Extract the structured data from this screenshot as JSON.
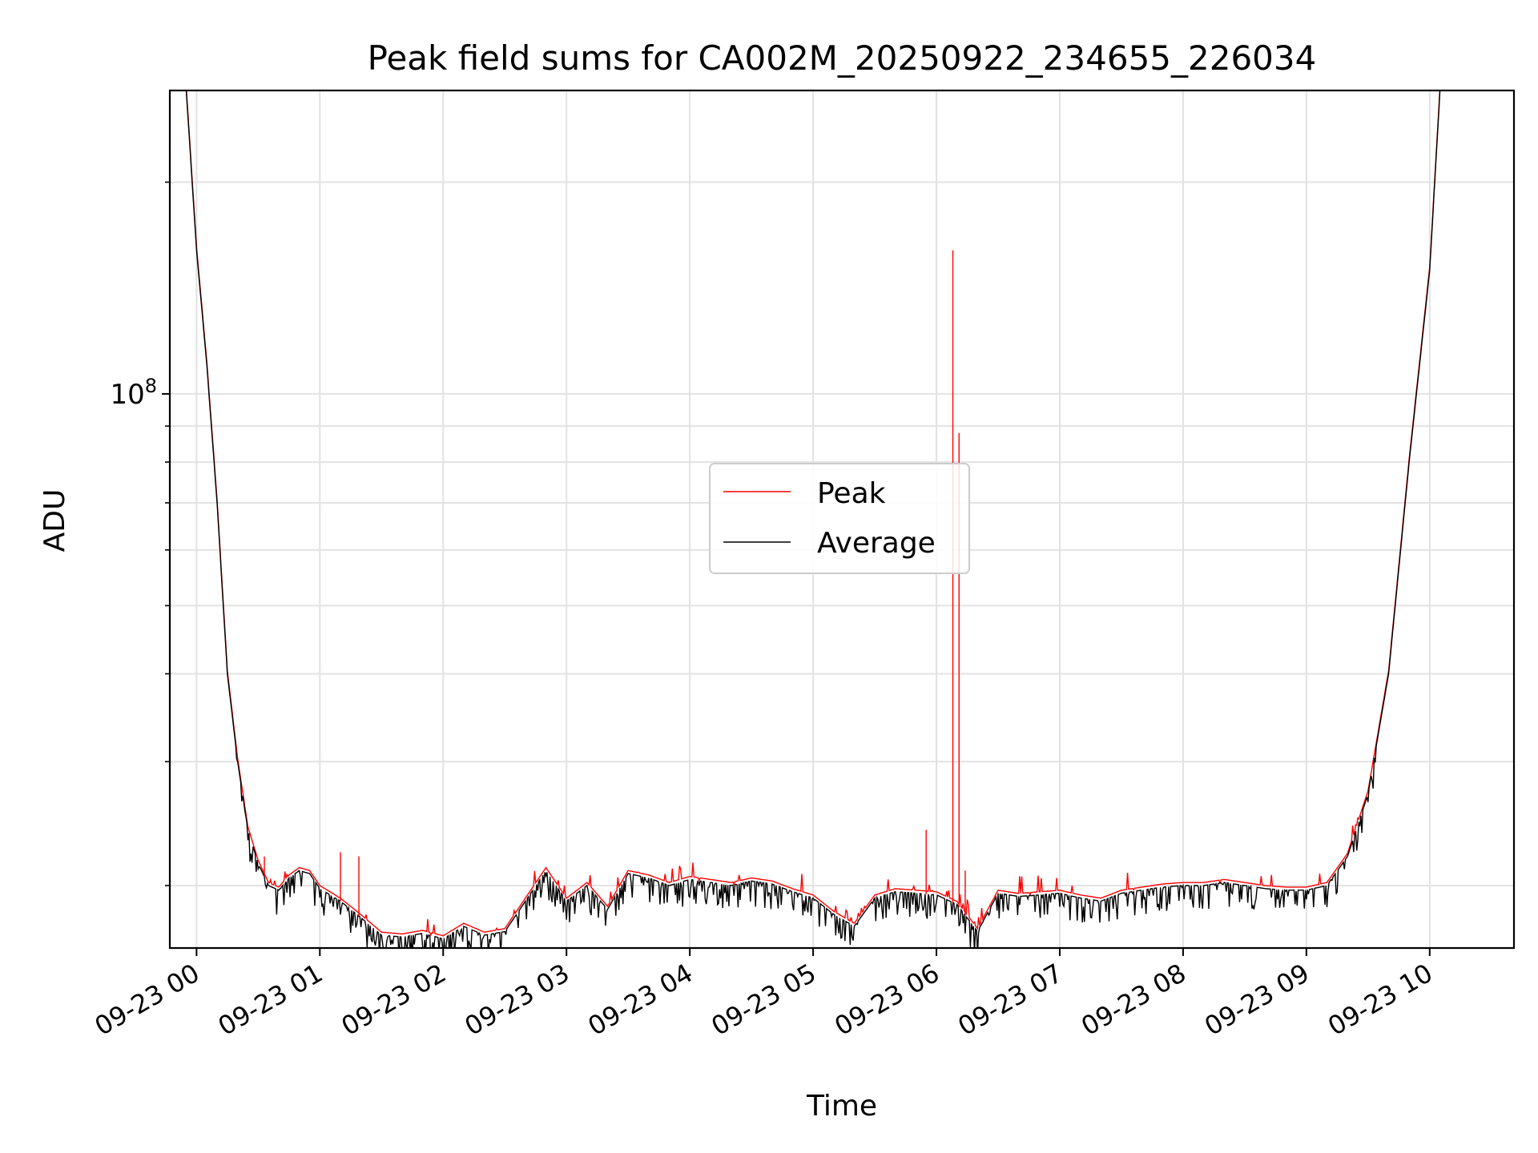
{
  "chart_data": {
    "type": "line",
    "title": "Peak field sums for CA002M_20250922_234655_226034",
    "xlabel": "Time",
    "ylabel": "ADU",
    "yscale": "log",
    "ylim": [
      16300000,
      270000000
    ],
    "xlim": [
      "2025-09-22 23:47",
      "2025-09-23 10:41"
    ],
    "grid": true,
    "legend_position": "center",
    "x_ticks": [
      "09-23 00",
      "09-23 01",
      "09-23 02",
      "09-23 03",
      "09-23 04",
      "09-23 05",
      "09-23 06",
      "09-23 07",
      "09-23 08",
      "09-23 09",
      "09-23 10"
    ],
    "y_tick_label": {
      "base": "10",
      "exp": "8"
    },
    "series": [
      {
        "name": "Peak",
        "color": "#ff0000"
      },
      {
        "name": "Average",
        "color": "#000000"
      }
    ],
    "x": [
      "23:47",
      "23:52",
      "23:55",
      "00:00",
      "00:05",
      "00:10",
      "00:15",
      "00:20",
      "00:25",
      "00:30",
      "00:35",
      "00:40",
      "00:45",
      "00:50",
      "00:55",
      "01:00",
      "01:10",
      "01:20",
      "01:30",
      "01:40",
      "01:50",
      "02:00",
      "02:10",
      "02:20",
      "02:30",
      "02:40",
      "02:50",
      "03:00",
      "03:10",
      "03:20",
      "03:30",
      "03:40",
      "03:50",
      "04:00",
      "04:10",
      "04:20",
      "04:30",
      "04:40",
      "04:50",
      "05:00",
      "05:10",
      "05:20",
      "05:30",
      "05:40",
      "05:50",
      "06:00",
      "06:10",
      "06:20",
      "06:30",
      "06:40",
      "06:50",
      "07:00",
      "07:10",
      "07:20",
      "07:30",
      "07:40",
      "07:50",
      "08:00",
      "08:10",
      "08:20",
      "08:30",
      "08:40",
      "08:50",
      "09:00",
      "09:10",
      "09:20",
      "09:30",
      "09:40",
      "09:50",
      "10:00",
      "10:05",
      "10:10",
      "10:15",
      "10:20",
      "10:25",
      "10:30",
      "10:35",
      "10:41"
    ],
    "y_average": [
      270000000,
      270000000,
      270000000,
      160000000,
      110000000,
      70000000,
      40000000,
      30000000,
      24000000,
      21500000,
      20000000,
      19700000,
      20500000,
      21000000,
      20800000,
      19800000,
      19000000,
      18000000,
      17000000,
      16900000,
      17100000,
      16800000,
      17500000,
      17000000,
      17200000,
      19000000,
      21000000,
      19000000,
      20000000,
      18500000,
      20800000,
      20500000,
      20000000,
      20400000,
      20200000,
      20000000,
      20300000,
      20100000,
      19600000,
      19200000,
      18200000,
      17500000,
      19200000,
      19600000,
      19500000,
      19400000,
      18800000,
      17200000,
      19500000,
      19300000,
      19400000,
      19500000,
      19200000,
      19000000,
      19500000,
      19700000,
      19900000,
      20000000,
      20000000,
      20200000,
      20000000,
      19800000,
      19700000,
      19700000,
      20000000,
      22000000,
      27000000,
      40000000,
      80000000,
      150000000,
      270000000,
      270000000,
      270000000,
      270000000,
      270000000,
      270000000,
      270000000,
      270000000
    ],
    "peak_spikes": [
      {
        "x": "00:33",
        "y": 22000000
      },
      {
        "x": "01:10",
        "y": 22300000
      },
      {
        "x": "01:19",
        "y": 22000000
      },
      {
        "x": "05:55",
        "y": 24000000
      },
      {
        "x": "06:08",
        "y": 160000000
      },
      {
        "x": "06:11",
        "y": 88000000
      },
      {
        "x": "06:14",
        "y": 21000000
      }
    ]
  }
}
